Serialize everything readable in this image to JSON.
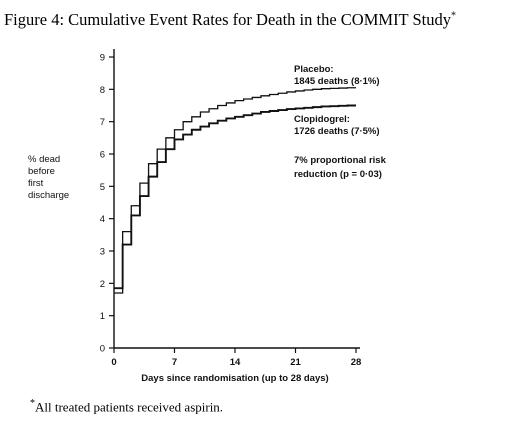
{
  "figure": {
    "title_main": "Figure 4: Cumulative Event Rates for Death in the COMMIT Study",
    "title_marker": "*",
    "footnote_marker": "*",
    "footnote_text": "All treated patients received aspirin."
  },
  "chart_data": {
    "type": "line",
    "title": "",
    "xlabel": "Days since randomisation (up to 28 days)",
    "ylabel_lines": [
      "% dead",
      "before",
      "first",
      "discharge"
    ],
    "xlim": [
      0,
      28
    ],
    "ylim": [
      0,
      9
    ],
    "xticks": [
      0,
      7,
      14,
      21,
      28
    ],
    "yticks": [
      0,
      1,
      2,
      3,
      4,
      5,
      6,
      7,
      8,
      9
    ],
    "grid": false,
    "series": [
      {
        "name": "Placebo",
        "label_lines": [
          "Placebo:",
          "1845 deaths (8·1%)"
        ],
        "color": "#111111",
        "step_x": [
          0,
          1,
          2,
          3,
          4,
          5,
          6,
          7,
          8,
          9,
          10,
          11,
          12,
          13,
          14,
          15,
          16,
          17,
          18,
          19,
          20,
          21,
          22,
          23,
          24,
          25,
          26,
          27,
          28
        ],
        "step_y": [
          1.7,
          3.6,
          4.4,
          5.1,
          5.7,
          6.15,
          6.5,
          6.75,
          7.0,
          7.15,
          7.3,
          7.4,
          7.5,
          7.58,
          7.65,
          7.7,
          7.75,
          7.8,
          7.84,
          7.88,
          7.92,
          7.95,
          7.98,
          8.0,
          8.02,
          8.03,
          8.04,
          8.05,
          8.05
        ]
      },
      {
        "name": "Clopidogrel",
        "label_lines": [
          "Clopidogrel:",
          "1726 deaths (7·5%)"
        ],
        "color": "#111111",
        "step_x": [
          0,
          1,
          2,
          3,
          4,
          5,
          6,
          7,
          8,
          9,
          10,
          11,
          12,
          13,
          14,
          15,
          16,
          17,
          18,
          19,
          20,
          21,
          22,
          23,
          24,
          25,
          26,
          27,
          28
        ],
        "step_y": [
          1.85,
          3.2,
          4.1,
          4.7,
          5.3,
          5.75,
          6.15,
          6.45,
          6.6,
          6.75,
          6.85,
          6.95,
          7.03,
          7.1,
          7.15,
          7.2,
          7.25,
          7.3,
          7.33,
          7.36,
          7.39,
          7.41,
          7.43,
          7.45,
          7.47,
          7.48,
          7.49,
          7.5,
          7.5
        ]
      }
    ],
    "annotation_lines": [
      "7% proportional risk",
      "reduction (p = 0·03)"
    ]
  }
}
